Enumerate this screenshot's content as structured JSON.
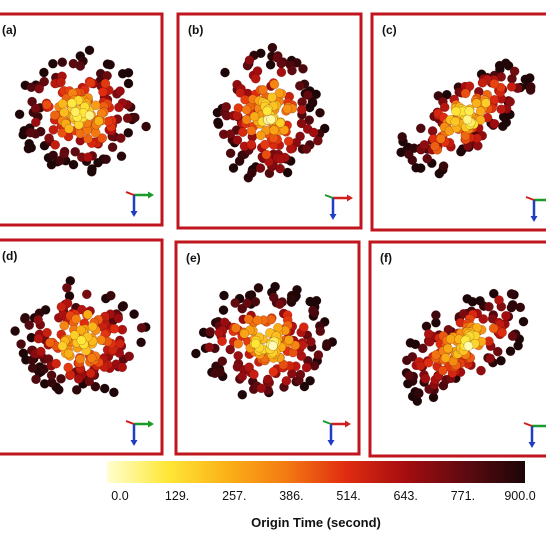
{
  "colors": {
    "frame": "#c0141e",
    "axis_x": "#1a9a2a",
    "axis_y": "#1f3ec4",
    "axis_z": "#d01f1f",
    "scale": [
      "#ffffd0",
      "#ffe838",
      "#fbb117",
      "#f47a12",
      "#e02c10",
      "#a50d10",
      "#5e0a10",
      "#1c0608"
    ]
  },
  "chart_data": {
    "type": "scatter",
    "panels": [
      {
        "label": "(a)",
        "view": "xy",
        "spread": [
          1.0,
          0.85
        ],
        "tilt": 0
      },
      {
        "label": "(b)",
        "view": "xz",
        "spread": [
          0.85,
          0.95
        ],
        "tilt": 0
      },
      {
        "label": "(c)",
        "view": "oblique",
        "spread": [
          1.15,
          0.45
        ],
        "tilt": -38
      },
      {
        "label": "(d)",
        "view": "xy",
        "spread": [
          1.0,
          0.8
        ],
        "tilt": 0
      },
      {
        "label": "(e)",
        "view": "xz",
        "spread": [
          1.0,
          0.8
        ],
        "tilt": 0
      },
      {
        "label": "(f)",
        "view": "oblique",
        "spread": [
          1.15,
          0.5
        ],
        "tilt": -35
      }
    ],
    "colorbar": {
      "title": "Origin Time (second)",
      "range": [
        0,
        900
      ],
      "ticks": [
        "0.0",
        "129.",
        "257.",
        "386.",
        "514.",
        "643.",
        "771.",
        "900.0"
      ]
    }
  }
}
